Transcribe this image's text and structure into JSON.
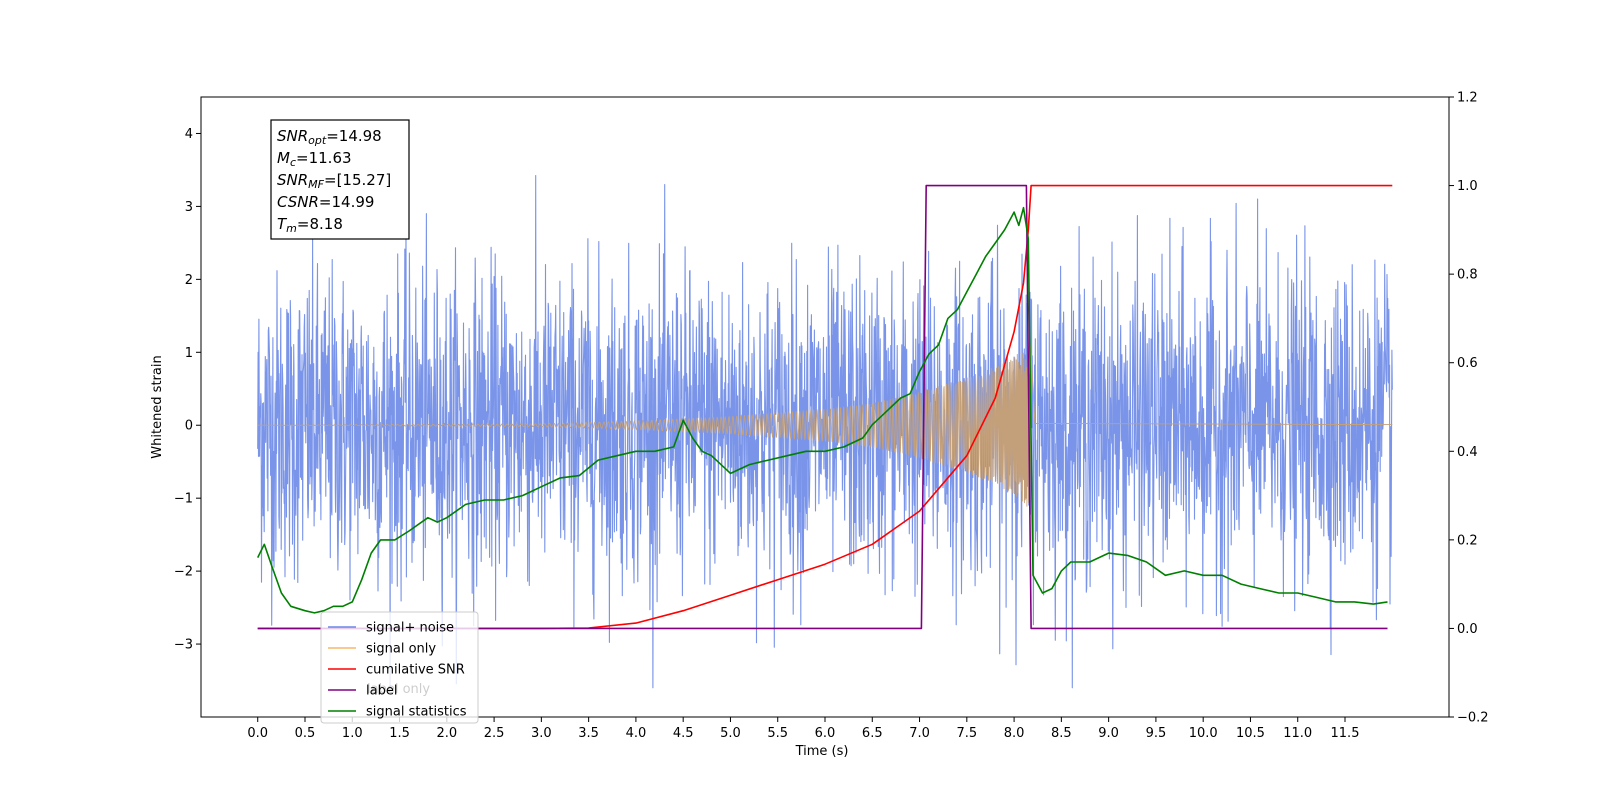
{
  "chart_data": {
    "type": "line",
    "xlabel": "Time (s)",
    "ylabel_left": "Whitened strain",
    "ylabel_right": "",
    "xlim": [
      -0.6,
      12.6
    ],
    "ylim_left": [
      -4,
      4.5
    ],
    "ylim_right": [
      -0.2,
      1.2
    ],
    "x_ticks": [
      0.0,
      0.5,
      1.0,
      1.5,
      2.0,
      2.5,
      3.0,
      3.5,
      4.0,
      4.5,
      5.0,
      5.5,
      6.0,
      6.5,
      7.0,
      7.5,
      8.0,
      8.5,
      9.0,
      9.5,
      10.0,
      10.5,
      11.0,
      11.5
    ],
    "x_tick_labels": [
      "0.0",
      "0.5",
      "1.0",
      "1.5",
      "2.0",
      "2.5",
      "3.0",
      "3.5",
      "4.0",
      "4.5",
      "5.0",
      "5.5",
      "6.0",
      "6.5",
      "7.0",
      "7.5",
      "8.0",
      "8.5",
      "9.0",
      "9.5",
      "10.0",
      "10.5",
      "11.0",
      "11.5"
    ],
    "y_left_ticks": [
      -3,
      -2,
      -1,
      0,
      1,
      2,
      3,
      4
    ],
    "y_left_tick_labels": [
      "−3",
      "−2",
      "−1",
      "0",
      "1",
      "2",
      "3",
      "4"
    ],
    "y_right_ticks": [
      -0.2,
      0.0,
      0.2,
      0.4,
      0.6,
      0.8,
      1.0,
      1.2
    ],
    "y_right_tick_labels": [
      "−0.2",
      "0.0",
      "0.2",
      "0.4",
      "0.6",
      "0.8",
      "1.0",
      "1.2"
    ],
    "annotation": {
      "lines": [
        {
          "base": "SNR",
          "sub": "opt",
          "value": "=14.98"
        },
        {
          "base": "M",
          "sub": "c",
          "value": "=11.63"
        },
        {
          "base": "SNR",
          "sub": "MF",
          "value": "=[15.27]"
        },
        {
          "base": "CSNR",
          "sub": "",
          "value": "=14.99"
        },
        {
          "base": "T",
          "sub": "m",
          "value": "=8.18"
        }
      ]
    },
    "legend": {
      "placement": "lower-left",
      "entries": [
        {
          "label": "signal+ noise",
          "color": "#6a88e6"
        },
        {
          "label": "signal only",
          "color": "#f5b86b"
        },
        {
          "label": "cumilative SNR",
          "color": "#ff0000"
        },
        {
          "label": "label",
          "color": "#800080"
        },
        {
          "label": "signal statistics",
          "color": "#008000"
        }
      ],
      "obscured_text": [
        "label only"
      ]
    },
    "series": [
      {
        "name": "signal+ noise",
        "axis": "left",
        "color": "#6a88e6",
        "kind": "noise",
        "x_start": 0.0,
        "x_end": 12.0,
        "amplitude": 1.7
      },
      {
        "name": "signal only",
        "axis": "left",
        "color": "#c4a07a",
        "kind": "chirp",
        "x_start": 0.0,
        "x_end": 12.0,
        "merger_time": 8.18,
        "envelope_x": [
          0.0,
          3.0,
          4.0,
          5.0,
          6.0,
          6.5,
          7.0,
          7.5,
          7.8,
          8.0,
          8.1,
          8.18,
          8.22,
          12.0
        ],
        "envelope_y": [
          0.0,
          0.02,
          0.06,
          0.12,
          0.22,
          0.3,
          0.45,
          0.65,
          0.8,
          0.95,
          1.05,
          1.2,
          0.03,
          0.01
        ]
      },
      {
        "name": "cumilative SNR",
        "axis": "right",
        "color": "#ff0000",
        "x": [
          0.0,
          3.0,
          3.5,
          4.0,
          4.5,
          5.0,
          5.5,
          6.0,
          6.5,
          7.0,
          7.5,
          7.8,
          8.0,
          8.1,
          8.15,
          8.18,
          8.2,
          12.0
        ],
        "y": [
          0.0,
          0.0,
          0.001,
          0.012,
          0.04,
          0.075,
          0.11,
          0.145,
          0.19,
          0.265,
          0.39,
          0.52,
          0.67,
          0.78,
          0.9,
          1.0,
          1.0,
          1.0
        ]
      },
      {
        "name": "label",
        "axis": "right",
        "color": "#800080",
        "x": [
          0.0,
          7.02,
          7.07,
          8.13,
          8.18,
          11.95
        ],
        "y": [
          0.0,
          0.0,
          1.0,
          1.0,
          0.0,
          0.0
        ]
      },
      {
        "name": "signal statistics",
        "axis": "right",
        "color": "#008000",
        "x": [
          0.0,
          0.07,
          0.15,
          0.25,
          0.35,
          0.5,
          0.6,
          0.7,
          0.8,
          0.9,
          1.0,
          1.1,
          1.2,
          1.3,
          1.45,
          1.6,
          1.8,
          1.9,
          2.0,
          2.2,
          2.4,
          2.6,
          2.8,
          3.0,
          3.2,
          3.4,
          3.6,
          3.8,
          4.0,
          4.2,
          4.4,
          4.5,
          4.6,
          4.7,
          4.8,
          5.0,
          5.2,
          5.4,
          5.6,
          5.8,
          6.0,
          6.2,
          6.4,
          6.5,
          6.6,
          6.8,
          6.9,
          7.0,
          7.1,
          7.2,
          7.3,
          7.4,
          7.5,
          7.6,
          7.7,
          7.8,
          7.9,
          8.0,
          8.05,
          8.1,
          8.15,
          8.2,
          8.3,
          8.4,
          8.5,
          8.6,
          8.8,
          9.0,
          9.2,
          9.4,
          9.6,
          9.8,
          10.0,
          10.2,
          10.4,
          10.6,
          10.8,
          11.0,
          11.2,
          11.4,
          11.6,
          11.8,
          11.95
        ],
        "y": [
          0.16,
          0.19,
          0.14,
          0.08,
          0.05,
          0.04,
          0.035,
          0.04,
          0.05,
          0.05,
          0.06,
          0.11,
          0.17,
          0.2,
          0.2,
          0.22,
          0.25,
          0.24,
          0.25,
          0.28,
          0.29,
          0.29,
          0.3,
          0.32,
          0.34,
          0.345,
          0.38,
          0.39,
          0.4,
          0.4,
          0.41,
          0.47,
          0.43,
          0.4,
          0.39,
          0.35,
          0.37,
          0.38,
          0.39,
          0.4,
          0.4,
          0.41,
          0.43,
          0.46,
          0.48,
          0.52,
          0.53,
          0.58,
          0.62,
          0.64,
          0.7,
          0.72,
          0.76,
          0.8,
          0.84,
          0.87,
          0.9,
          0.94,
          0.91,
          0.95,
          0.88,
          0.12,
          0.08,
          0.09,
          0.13,
          0.15,
          0.15,
          0.17,
          0.165,
          0.15,
          0.12,
          0.13,
          0.12,
          0.12,
          0.1,
          0.09,
          0.08,
          0.08,
          0.07,
          0.06,
          0.06,
          0.055,
          0.06
        ]
      }
    ]
  }
}
